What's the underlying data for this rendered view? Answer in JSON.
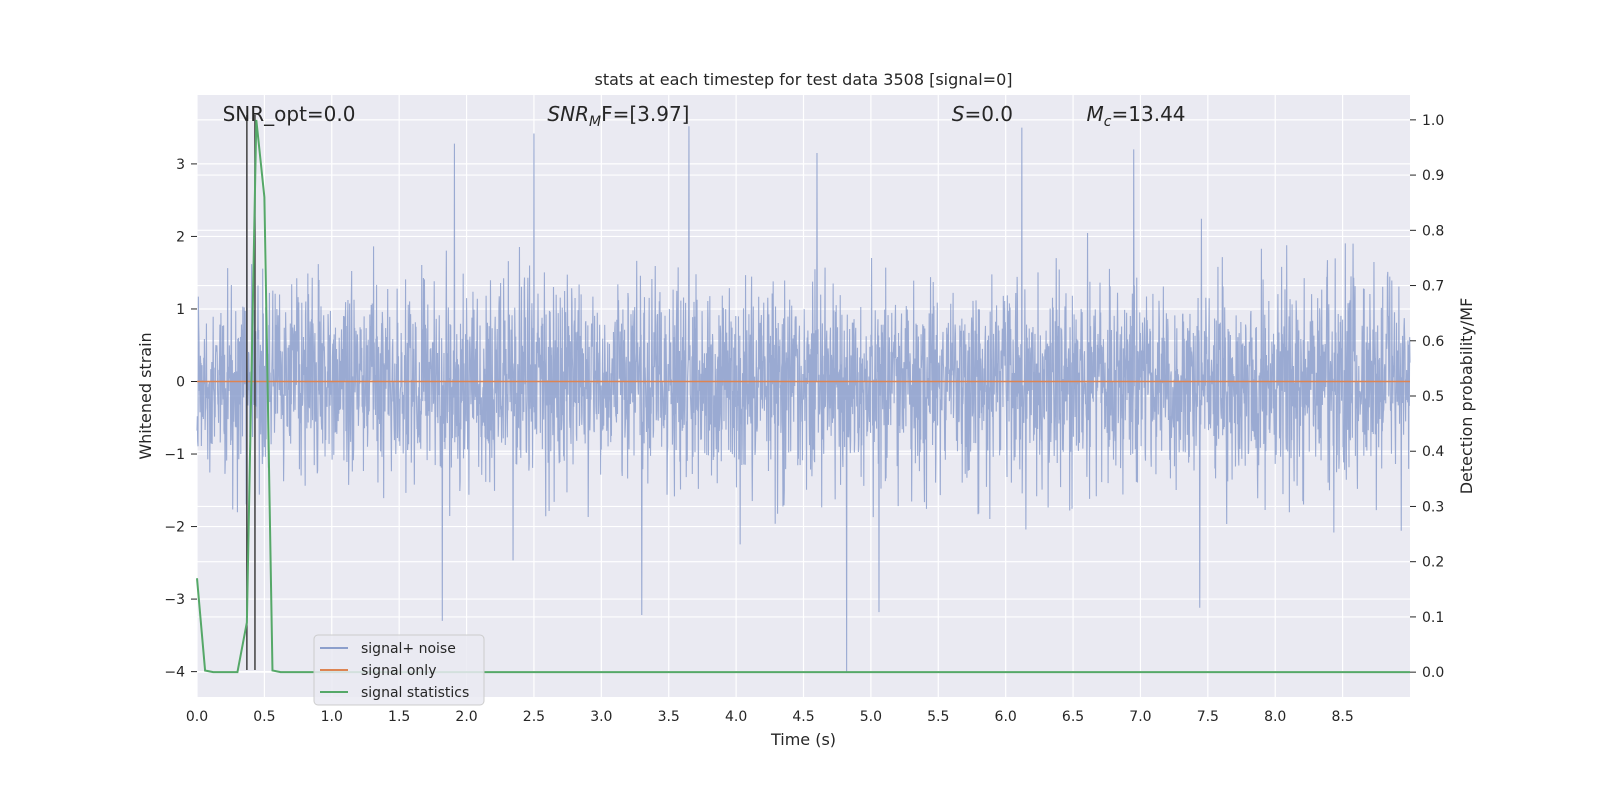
{
  "chart_data": {
    "type": "line",
    "title": "stats at each timestep for test data 3508 [signal=0]",
    "xlabel": "Time (s)",
    "ylabel": "Whitened strain",
    "ylabel_right": "Detection probability/MF",
    "xlim": [
      0.0,
      9.0
    ],
    "ylim": [
      -4.35,
      3.95
    ],
    "ylim_right": [
      -0.045,
      1.045
    ],
    "x_ticks": [
      0.0,
      0.5,
      1.0,
      1.5,
      2.0,
      2.5,
      3.0,
      3.5,
      4.0,
      4.5,
      5.0,
      5.5,
      6.0,
      6.5,
      7.0,
      7.5,
      8.0,
      8.5
    ],
    "x_tick_labels": [
      "0.0",
      "0.5",
      "1.0",
      "1.5",
      "2.0",
      "2.5",
      "3.0",
      "3.5",
      "4.0",
      "4.5",
      "5.0",
      "5.5",
      "6.0",
      "6.5",
      "7.0",
      "7.5",
      "8.0",
      "8.5"
    ],
    "y_ticks": [
      3,
      2,
      1,
      0,
      -1,
      -2,
      -3,
      -4
    ],
    "y_tick_labels": [
      "3",
      "2",
      "1",
      "0",
      "−1",
      "−2",
      "−3",
      "−4"
    ],
    "y_ticks_right": [
      1.0,
      0.9,
      0.8,
      0.7,
      0.6,
      0.5,
      0.4,
      0.3,
      0.2,
      0.1,
      0.0
    ],
    "y_tick_labels_right": [
      "1.0",
      "0.9",
      "0.8",
      "0.7",
      "0.6",
      "0.5",
      "0.4",
      "0.3",
      "0.2",
      "0.1",
      "0.0"
    ],
    "grid": true,
    "legend_position": "lower-left",
    "series": [
      {
        "name": "signal+ noise",
        "color": "#8c9fcc",
        "axis": "left",
        "noise_std": 0.68,
        "extremes": [
          {
            "x": 0.37,
            "y": 3.02
          },
          {
            "x": 1.91,
            "y": 3.28
          },
          {
            "x": 2.5,
            "y": 3.42
          },
          {
            "x": 3.65,
            "y": 3.52
          },
          {
            "x": 4.6,
            "y": 3.15
          },
          {
            "x": 6.12,
            "y": 3.5
          },
          {
            "x": 6.95,
            "y": 3.2
          },
          {
            "x": 4.82,
            "y": -4.0
          },
          {
            "x": 1.82,
            "y": -3.3
          },
          {
            "x": 3.3,
            "y": -3.22
          },
          {
            "x": 5.06,
            "y": -3.18
          },
          {
            "x": 7.44,
            "y": -3.12
          }
        ]
      },
      {
        "name": "signal only",
        "color": "#dd8452",
        "axis": "left",
        "x": [
          0.0,
          9.0
        ],
        "y": [
          0.0,
          0.0
        ]
      },
      {
        "name": "signal statistics",
        "color": "#55a868",
        "axis": "right",
        "x": [
          0.0,
          0.06,
          0.12,
          0.18,
          0.24,
          0.3,
          0.37,
          0.44,
          0.5,
          0.56,
          0.62,
          0.7,
          9.0
        ],
        "y": [
          0.17,
          0.003,
          0.0,
          0.0,
          0.0,
          0.0,
          0.09,
          1.0,
          0.86,
          0.003,
          0.0,
          0.0,
          0.0
        ]
      }
    ],
    "vertical_lines": [
      0.37,
      0.43
    ],
    "annotations": [
      {
        "text": "SNR_opt=0.0",
        "x": 0.19
      },
      {
        "base": "SNR",
        "sub": "M",
        "rest": "F=[3.97]",
        "x": 2.6
      },
      {
        "base": "S",
        "rest": "=0.0",
        "x": 5.6
      },
      {
        "base": "M",
        "sub": "c",
        "rest": "=13.44",
        "x": 6.6
      }
    ]
  }
}
